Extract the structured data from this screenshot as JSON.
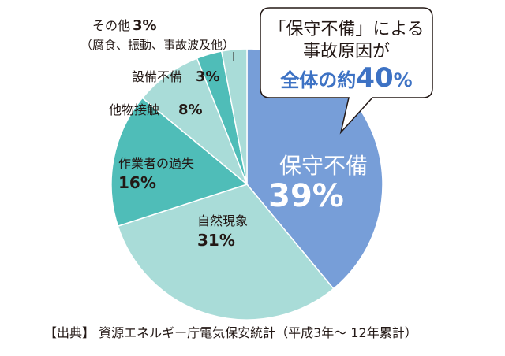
{
  "chart_data": {
    "type": "pie",
    "slices": [
      {
        "name": "保守不備",
        "value": 39,
        "value_label": "39%",
        "color": "#779ed8"
      },
      {
        "name": "自然現象",
        "value": 31,
        "value_label": "31%",
        "color": "#a9dcd8"
      },
      {
        "name": "作業者の過失",
        "value": 16,
        "value_label": "16%",
        "color": "#4fbdb8"
      },
      {
        "name": "他物接触",
        "value": 8,
        "value_label": "8%",
        "color": "#a9dcd8"
      },
      {
        "name": "設備不備",
        "value": 3,
        "value_label": "3%",
        "color": "#4fbdb8"
      },
      {
        "name": "その他",
        "value": 3,
        "value_label": "3%",
        "sublabel": "（腐食、振動、事故波及他）",
        "color": "#a9dcd8"
      }
    ],
    "callout": {
      "line1": "「保守不備」による",
      "line2": "事故原因が",
      "line3_prefix": "全体の約",
      "line3_value": "40",
      "line3_unit": "%"
    },
    "source": "【出典】 資源エネルギー庁電気保安統計（平成3年〜 12年累計）"
  }
}
